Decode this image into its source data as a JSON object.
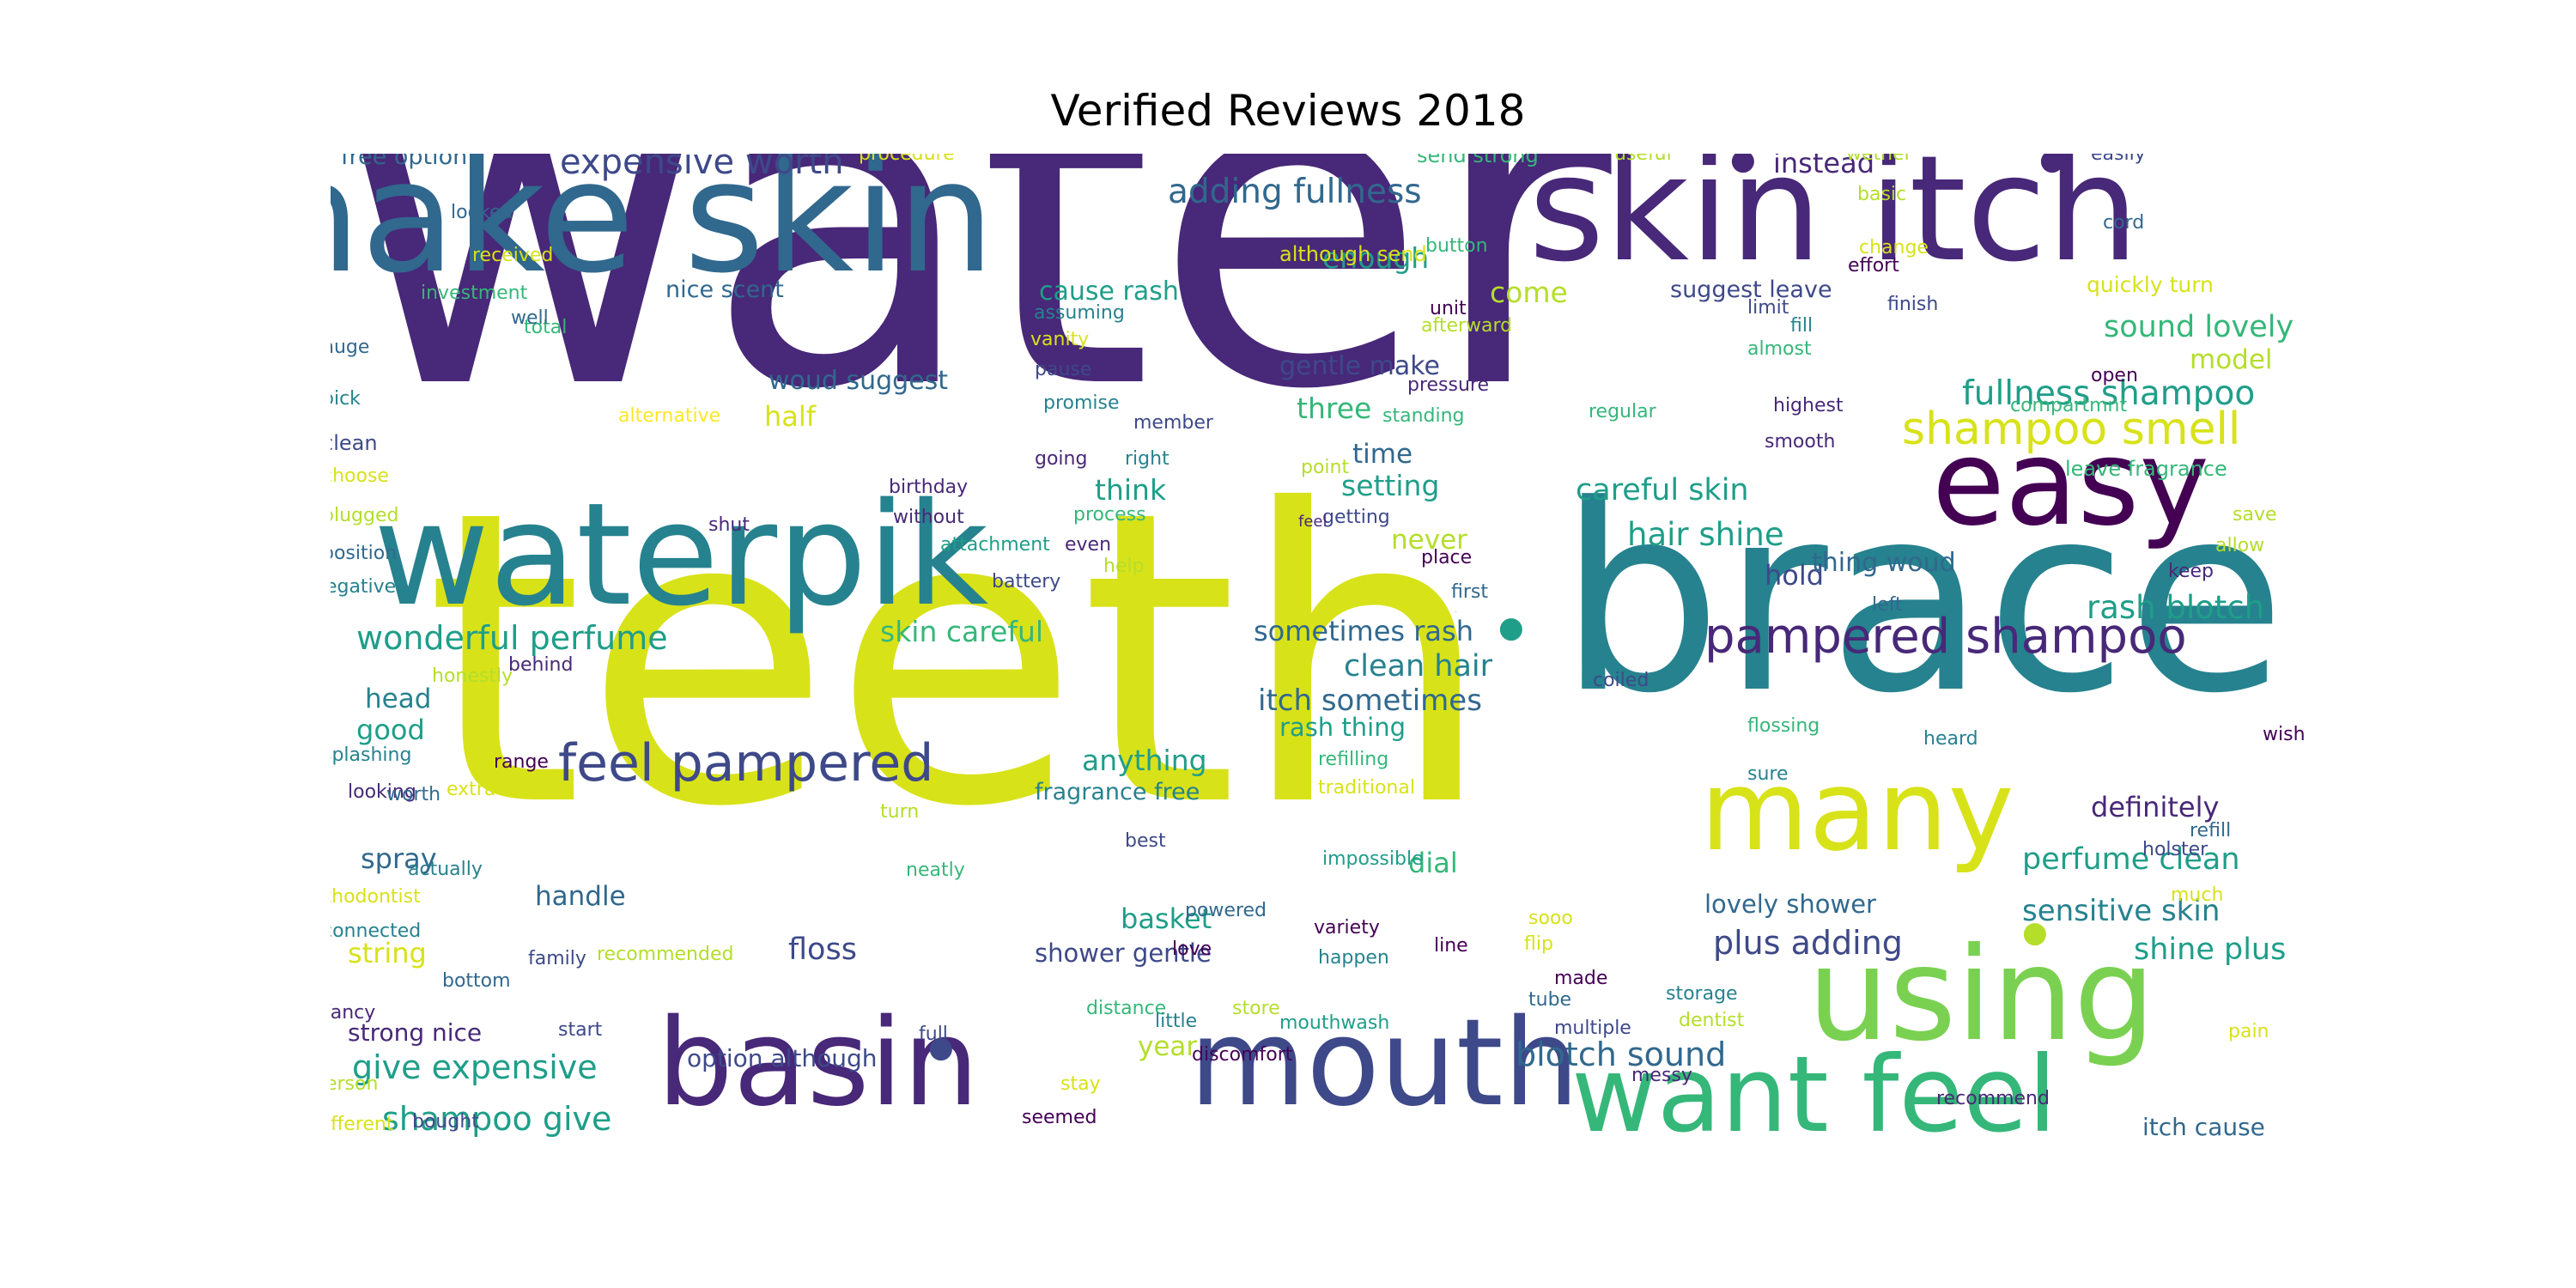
{
  "title": "Verified Reviews 2018",
  "palette": [
    "#440154",
    "#482878",
    "#3e4989",
    "#31688e",
    "#26828e",
    "#1f9e89",
    "#35b779",
    "#6ece58",
    "#b5de2b",
    "#fde725"
  ],
  "words": [
    {
      "text": "water",
      "weight": 1.0,
      "color": "#482878"
    },
    {
      "text": "teeth",
      "weight": 0.9,
      "color": "#d8e219"
    },
    {
      "text": "brace",
      "weight": 0.55,
      "color": "#26828e"
    },
    {
      "text": "make skin",
      "weight": 0.35,
      "color": "#31688e"
    },
    {
      "text": "skin itch",
      "weight": 0.35,
      "color": "#482878"
    },
    {
      "text": "waterpik",
      "weight": 0.3,
      "color": "#26828e"
    },
    {
      "text": "using",
      "weight": 0.3,
      "color": "#7ad151"
    },
    {
      "text": "basin",
      "weight": 0.3,
      "color": "#482878"
    },
    {
      "text": "mouth",
      "weight": 0.3,
      "color": "#3e4989"
    },
    {
      "text": "want feel",
      "weight": 0.28,
      "color": "#35b779"
    },
    {
      "text": "many",
      "weight": 0.28,
      "color": "#d8e219"
    },
    {
      "text": "easy",
      "weight": 0.28,
      "color": "#440154"
    },
    {
      "text": "feel pampered",
      "weight": 0.14,
      "color": "#3e4989"
    },
    {
      "text": "pampered shampoo",
      "weight": 0.12,
      "color": "#482878"
    },
    {
      "text": "shampoo smell",
      "weight": 0.11,
      "color": "#d8e219"
    },
    {
      "text": "expensive worth",
      "weight": 0.09,
      "color": "#3e4989"
    },
    {
      "text": "adding fullness",
      "weight": 0.09,
      "color": "#31688e"
    },
    {
      "text": "fullness shampoo",
      "weight": 0.09,
      "color": "#1f9e89"
    },
    {
      "text": "wonderful perfume",
      "weight": 0.09,
      "color": "#1f9e89"
    },
    {
      "text": "give expensive",
      "weight": 0.09,
      "color": "#1f9e89"
    },
    {
      "text": "shampoo give",
      "weight": 0.09,
      "color": "#1f9e89"
    },
    {
      "text": "blotch sound",
      "weight": 0.09,
      "color": "#31688e"
    },
    {
      "text": "plus adding",
      "weight": 0.09,
      "color": "#3e4989"
    },
    {
      "text": "rash blotch",
      "weight": 0.09,
      "color": "#1f9e89"
    },
    {
      "text": "hair shine",
      "weight": 0.09,
      "color": "#1f9e89"
    },
    {
      "text": "careful skin",
      "weight": 0.08,
      "color": "#1f9e89"
    },
    {
      "text": "sound lovely",
      "weight": 0.08,
      "color": "#35b779"
    },
    {
      "text": "perfume clean",
      "weight": 0.08,
      "color": "#1f9e89"
    },
    {
      "text": "sensitive skin",
      "weight": 0.08,
      "color": "#26828e"
    },
    {
      "text": "shine plus",
      "weight": 0.08,
      "color": "#1f9e89"
    },
    {
      "text": "clean hair",
      "weight": 0.08,
      "color": "#26828e"
    },
    {
      "text": "itch sometimes",
      "weight": 0.08,
      "color": "#31688e"
    },
    {
      "text": "sometimes rash",
      "weight": 0.07,
      "color": "#31688e"
    },
    {
      "text": "skin careful",
      "weight": 0.08,
      "color": "#35b779"
    },
    {
      "text": "three",
      "weight": 0.08,
      "color": "#35b779"
    },
    {
      "text": "half",
      "weight": 0.08,
      "color": "#d8e219"
    },
    {
      "text": "floss",
      "weight": 0.08,
      "color": "#3e4989"
    },
    {
      "text": "basket",
      "weight": 0.07,
      "color": "#1f9e89"
    },
    {
      "text": "definitely",
      "weight": 0.07,
      "color": "#482878"
    },
    {
      "text": "string",
      "weight": 0.07,
      "color": "#d8e219"
    },
    {
      "text": "setting",
      "weight": 0.07,
      "color": "#1f9e89"
    },
    {
      "text": "think",
      "weight": 0.07,
      "color": "#1f9e89"
    },
    {
      "text": "anything",
      "weight": 0.07,
      "color": "#1f9e89"
    },
    {
      "text": "enough",
      "weight": 0.07,
      "color": "#1f9e89"
    },
    {
      "text": "come",
      "weight": 0.07,
      "color": "#b5de2b"
    },
    {
      "text": "time",
      "weight": 0.07,
      "color": "#31688e"
    },
    {
      "text": "spray",
      "weight": 0.07,
      "color": "#31688e"
    },
    {
      "text": "handle",
      "weight": 0.07,
      "color": "#31688e"
    },
    {
      "text": "good",
      "weight": 0.07,
      "color": "#1f9e89"
    },
    {
      "text": "head",
      "weight": 0.07,
      "color": "#26828e"
    },
    {
      "text": "hold",
      "weight": 0.07,
      "color": "#3e4989"
    },
    {
      "text": "model",
      "weight": 0.07,
      "color": "#b5de2b"
    },
    {
      "text": "dial",
      "weight": 0.07,
      "color": "#35b779"
    },
    {
      "text": "year",
      "weight": 0.07,
      "color": "#b5de2b"
    },
    {
      "text": "never",
      "weight": 0.07,
      "color": "#b5de2b"
    },
    {
      "text": "instead",
      "weight": 0.07,
      "color": "#482878"
    },
    {
      "text": "woud suggest",
      "weight": 0.06,
      "color": "#31688e"
    },
    {
      "text": "gentle make",
      "weight": 0.06,
      "color": "#3e4989"
    },
    {
      "text": "cause rash",
      "weight": 0.06,
      "color": "#1f9e89"
    },
    {
      "text": "thing woud",
      "weight": 0.06,
      "color": "#31688e"
    },
    {
      "text": "lovely shower",
      "weight": 0.06,
      "color": "#31688e"
    },
    {
      "text": "shower gentle",
      "weight": 0.06,
      "color": "#3e4989"
    },
    {
      "text": "rash thing",
      "weight": 0.06,
      "color": "#1f9e89"
    },
    {
      "text": "option although",
      "weight": 0.05,
      "color": "#3e4989"
    },
    {
      "text": "itch cause",
      "weight": 0.05,
      "color": "#31688e"
    },
    {
      "text": "strong nice",
      "weight": 0.05,
      "color": "#482878"
    },
    {
      "text": "fragrance free",
      "weight": 0.05,
      "color": "#26828e"
    },
    {
      "text": "suggest leave",
      "weight": 0.05,
      "color": "#3e4989"
    },
    {
      "text": "nice scent",
      "weight": 0.05,
      "color": "#31688e"
    },
    {
      "text": "free option",
      "weight": 0.05,
      "color": "#31688e"
    },
    {
      "text": "quickly turn",
      "weight": 0.04,
      "color": "#d8e219"
    },
    {
      "text": "although send",
      "weight": 0.04,
      "color": "#d8e219"
    },
    {
      "text": "send strong",
      "weight": 0.04,
      "color": "#35b779"
    },
    {
      "text": "leave fragrance",
      "weight": 0.04,
      "color": "#35b779"
    },
    {
      "text": "recommended",
      "weight": 0.04,
      "color": "#b5de2b"
    },
    {
      "text": "refilling",
      "weight": 0.04,
      "color": "#35b779"
    },
    {
      "text": "traditional",
      "weight": 0.04,
      "color": "#d8e219"
    },
    {
      "text": "orthodontist",
      "weight": 0.04,
      "color": "#d8e219"
    },
    {
      "text": "investment",
      "weight": 0.04,
      "color": "#35b779"
    },
    {
      "text": "procedure",
      "weight": 0.04,
      "color": "#d8e219"
    },
    {
      "text": "alternative",
      "weight": 0.04,
      "color": "#fde725"
    },
    {
      "text": "afterward",
      "weight": 0.04,
      "color": "#b5de2b"
    },
    {
      "text": "compartmnt",
      "weight": 0.04,
      "color": "#35b779"
    },
    {
      "text": "impossible",
      "weight": 0.04,
      "color": "#1f9e89"
    },
    {
      "text": "mouthwash",
      "weight": 0.04,
      "color": "#1f9e89"
    },
    {
      "text": "discomfort",
      "weight": 0.04,
      "color": "#440154"
    },
    {
      "text": "attachment",
      "weight": 0.04,
      "color": "#1f9e89"
    },
    {
      "text": "birthday",
      "weight": 0.04,
      "color": "#482878"
    },
    {
      "text": "splashing",
      "weight": 0.04,
      "color": "#26828e"
    },
    {
      "text": "connected",
      "weight": 0.04,
      "color": "#26828e"
    },
    {
      "text": "honestly",
      "weight": 0.04,
      "color": "#b5de2b"
    },
    {
      "text": "different",
      "weight": 0.04,
      "color": "#d8e219"
    },
    {
      "text": "negative",
      "weight": 0.04,
      "color": "#26828e"
    },
    {
      "text": "position",
      "weight": 0.04,
      "color": "#31688e"
    },
    {
      "text": "flossing",
      "weight": 0.04,
      "color": "#35b779"
    },
    {
      "text": "pressure",
      "weight": 0.04,
      "color": "#482878"
    },
    {
      "text": "standing",
      "weight": 0.04,
      "color": "#35b779"
    },
    {
      "text": "received",
      "weight": 0.04,
      "color": "#d8e219"
    },
    {
      "text": "assuming",
      "weight": 0.04,
      "color": "#26828e"
    },
    {
      "text": "multiple",
      "weight": 0.04,
      "color": "#3e4989"
    },
    {
      "text": "distance",
      "weight": 0.04,
      "color": "#35b779"
    },
    {
      "text": "actually",
      "weight": 0.04,
      "color": "#26828e"
    },
    {
      "text": "powered",
      "weight": 0.04,
      "color": "#31688e"
    },
    {
      "text": "storage",
      "weight": 0.04,
      "color": "#26828e"
    },
    {
      "text": "dentist",
      "weight": 0.04,
      "color": "#b5de2b"
    },
    {
      "text": "variety",
      "weight": 0.04,
      "color": "#440154"
    },
    {
      "text": "regular",
      "weight": 0.04,
      "color": "#35b779"
    },
    {
      "text": "highest",
      "weight": 0.04,
      "color": "#482878"
    },
    {
      "text": "looking",
      "weight": 0.04,
      "color": "#482878"
    },
    {
      "text": "plugged",
      "weight": 0.04,
      "color": "#b5de2b"
    },
    {
      "text": "battery",
      "weight": 0.04,
      "color": "#3e4989"
    },
    {
      "text": "promise",
      "weight": 0.04,
      "color": "#26828e"
    },
    {
      "text": "process",
      "weight": 0.04,
      "color": "#35b779"
    },
    {
      "text": "without",
      "weight": 0.04,
      "color": "#482878"
    },
    {
      "text": "getting",
      "weight": 0.04,
      "color": "#3e4989"
    },
    {
      "text": "recommend",
      "weight": 0.04,
      "color": "#482878"
    },
    {
      "text": "holster",
      "weight": 0.04,
      "color": "#3e4989"
    },
    {
      "text": "behind",
      "weight": 0.04,
      "color": "#482878"
    },
    {
      "text": "happen",
      "weight": 0.04,
      "color": "#26828e"
    },
    {
      "text": "bottom",
      "weight": 0.04,
      "color": "#31688e"
    },
    {
      "text": "member",
      "weight": 0.04,
      "color": "#3e4989"
    },
    {
      "text": "choose",
      "weight": 0.04,
      "color": "#d8e219"
    },
    {
      "text": "person",
      "weight": 0.04,
      "color": "#b5de2b"
    },
    {
      "text": "seemed",
      "weight": 0.04,
      "color": "#440154"
    },
    {
      "text": "smooth",
      "weight": 0.04,
      "color": "#482878"
    },
    {
      "text": "button",
      "weight": 0.04,
      "color": "#35b779"
    },
    {
      "text": "change",
      "weight": 0.04,
      "color": "#d8e219"
    },
    {
      "text": "family",
      "weight": 0.04,
      "color": "#3e4989"
    },
    {
      "text": "almost",
      "weight": 0.04,
      "color": "#35b779"
    },
    {
      "text": "finish",
      "weight": 0.04,
      "color": "#3e4989"
    },
    {
      "text": "effort",
      "weight": 0.04,
      "color": "#440154"
    },
    {
      "text": "bought",
      "weight": 0.04,
      "color": "#3e4989"
    },
    {
      "text": "useful",
      "weight": 0.04,
      "color": "#b5de2b"
    },
    {
      "text": "wether",
      "weight": 0.04,
      "color": "#b5de2b"
    },
    {
      "text": "easily",
      "weight": 0.04,
      "color": "#3e4989"
    },
    {
      "text": "looked",
      "weight": 0.04,
      "color": "#31688e"
    },
    {
      "text": "neatly",
      "weight": 0.04,
      "color": "#35b779"
    },
    {
      "text": "vanity",
      "weight": 0.04,
      "color": "#d8e219"
    },
    {
      "text": "little",
      "weight": 0.04,
      "color": "#26828e"
    },
    {
      "text": "coiled",
      "weight": 0.04,
      "color": "#3e4989"
    },
    {
      "text": "refill",
      "weight": 0.04,
      "color": "#31688e"
    },
    {
      "text": "basic",
      "weight": 0.04,
      "color": "#b5de2b"
    },
    {
      "text": "total",
      "weight": 0.04,
      "color": "#35b779"
    },
    {
      "text": "limit",
      "weight": 0.04,
      "color": "#3e4989"
    },
    {
      "text": "pause",
      "weight": 0.04,
      "color": "#3e4989"
    },
    {
      "text": "going",
      "weight": 0.04,
      "color": "#482878"
    },
    {
      "text": "right",
      "weight": 0.04,
      "color": "#26828e"
    },
    {
      "text": "point",
      "weight": 0.04,
      "color": "#b5de2b"
    },
    {
      "text": "extra",
      "weight": 0.04,
      "color": "#d8e219"
    },
    {
      "text": "range",
      "weight": 0.04,
      "color": "#440154"
    },
    {
      "text": "worth",
      "weight": 0.04,
      "color": "#31688e"
    },
    {
      "text": "fancy",
      "weight": 0.04,
      "color": "#482878"
    },
    {
      "text": "start",
      "weight": 0.04,
      "color": "#3e4989"
    },
    {
      "text": "store",
      "weight": 0.04,
      "color": "#b5de2b"
    },
    {
      "text": "place",
      "weight": 0.04,
      "color": "#440154"
    },
    {
      "text": "first",
      "weight": 0.04,
      "color": "#31688e"
    },
    {
      "text": "left",
      "weight": 0.04,
      "color": "#31688e"
    },
    {
      "text": "keep",
      "weight": 0.04,
      "color": "#482878"
    },
    {
      "text": "save",
      "weight": 0.04,
      "color": "#b5de2b"
    },
    {
      "text": "allow",
      "weight": 0.04,
      "color": "#b5de2b"
    },
    {
      "text": "open",
      "weight": 0.04,
      "color": "#440154"
    },
    {
      "text": "well",
      "weight": 0.04,
      "color": "#31688e"
    },
    {
      "text": "huge",
      "weight": 0.04,
      "color": "#31688e"
    },
    {
      "text": "pick",
      "weight": 0.04,
      "color": "#26828e"
    },
    {
      "text": "clean",
      "weight": 0.05,
      "color": "#3e4989"
    },
    {
      "text": "unit",
      "weight": 0.04,
      "color": "#440154"
    },
    {
      "text": "fill",
      "weight": 0.04,
      "color": "#26828e"
    },
    {
      "text": "cord",
      "weight": 0.04,
      "color": "#31688e"
    },
    {
      "text": "shut",
      "weight": 0.04,
      "color": "#482878"
    },
    {
      "text": "even",
      "weight": 0.04,
      "color": "#482878"
    },
    {
      "text": "help",
      "weight": 0.04,
      "color": "#b5de2b"
    },
    {
      "text": "feel",
      "weight": 0.03,
      "color": "#482878"
    },
    {
      "text": "turn",
      "weight": 0.04,
      "color": "#b5de2b"
    },
    {
      "text": "best",
      "weight": 0.04,
      "color": "#3e4989"
    },
    {
      "text": "love",
      "weight": 0.04,
      "color": "#440154"
    },
    {
      "text": "line",
      "weight": 0.04,
      "color": "#440154"
    },
    {
      "text": "sooo",
      "weight": 0.04,
      "color": "#d8e219"
    },
    {
      "text": "flip",
      "weight": 0.04,
      "color": "#d8e219"
    },
    {
      "text": "made",
      "weight": 0.04,
      "color": "#440154"
    },
    {
      "text": "tube",
      "weight": 0.04,
      "color": "#31688e"
    },
    {
      "text": "messy",
      "weight": 0.04,
      "color": "#482878"
    },
    {
      "text": "full",
      "weight": 0.04,
      "color": "#3e4989"
    },
    {
      "text": "stay",
      "weight": 0.04,
      "color": "#d8e219"
    },
    {
      "text": "much",
      "weight": 0.04,
      "color": "#d8e219"
    },
    {
      "text": "pain",
      "weight": 0.04,
      "color": "#d8e219"
    },
    {
      "text": "wish",
      "weight": 0.04,
      "color": "#440154"
    },
    {
      "text": "heard",
      "weight": 0.04,
      "color": "#26828e"
    },
    {
      "text": "sure",
      "weight": 0.04,
      "color": "#26828e"
    },
    {
      "text": "●",
      "weight": 0.05,
      "color": "#482878"
    },
    {
      "text": "●",
      "weight": 0.05,
      "color": "#482878"
    },
    {
      "text": "●",
      "weight": 0.05,
      "color": "#1f9e89"
    },
    {
      "text": "●",
      "weight": 0.05,
      "color": "#3e4989"
    },
    {
      "text": "●",
      "weight": 0.05,
      "color": "#b5de2b"
    },
    {
      "text": "●",
      "weight": 0.05,
      "color": "#440154"
    }
  ]
}
